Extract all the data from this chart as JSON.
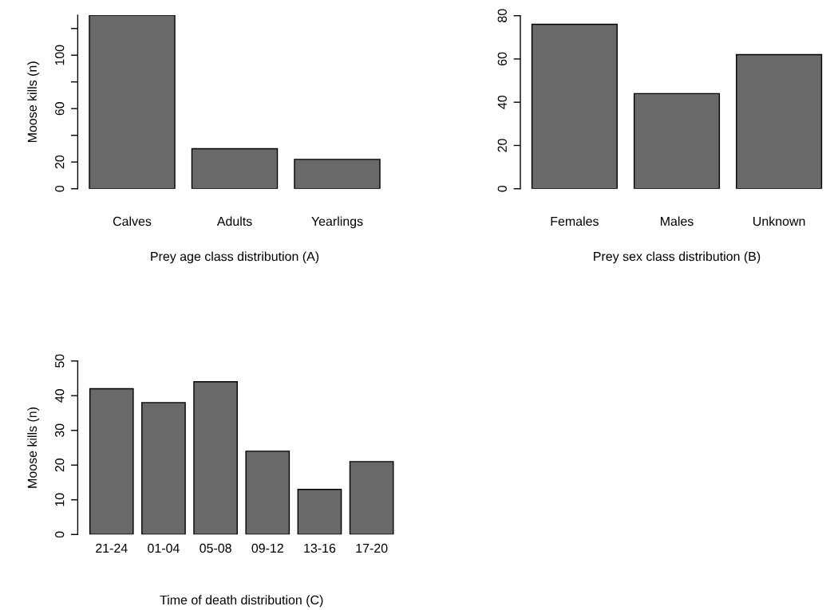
{
  "chart_data": [
    {
      "type": "bar",
      "categories": [
        "Calves",
        "Adults",
        "Yearlings"
      ],
      "values": [
        130,
        30,
        22
      ],
      "color": "#696969",
      "xlabel": "Prey age class distribution (A)",
      "ylabel": "Moose kills (n)",
      "ylim": [
        0,
        130
      ],
      "yticks": [
        0,
        20,
        {
          "value": 40,
          "label": null
        },
        60,
        {
          "value": 80,
          "label": null
        },
        100,
        {
          "value": 120,
          "label": null
        }
      ]
    },
    {
      "type": "bar",
      "categories": [
        "Females",
        "Males",
        "Unknown"
      ],
      "values": [
        76,
        44,
        62
      ],
      "color": "#696969",
      "xlabel": "Prey sex class distribution (B)",
      "ylim": [
        0,
        80
      ],
      "yticks": [
        0,
        20,
        40,
        60,
        80
      ]
    },
    {
      "type": "bar",
      "categories": [
        "21-24",
        "01-04",
        "05-08",
        "09-12",
        "13-16",
        "17-20"
      ],
      "values": [
        42,
        38,
        44,
        24,
        13,
        21
      ],
      "color": "#696969",
      "xlabel": "Time of death distribution (C)",
      "ylabel": "Moose kills (n)",
      "ylim": [
        0,
        50
      ],
      "yticks": [
        0,
        10,
        20,
        30,
        40,
        50
      ]
    }
  ]
}
